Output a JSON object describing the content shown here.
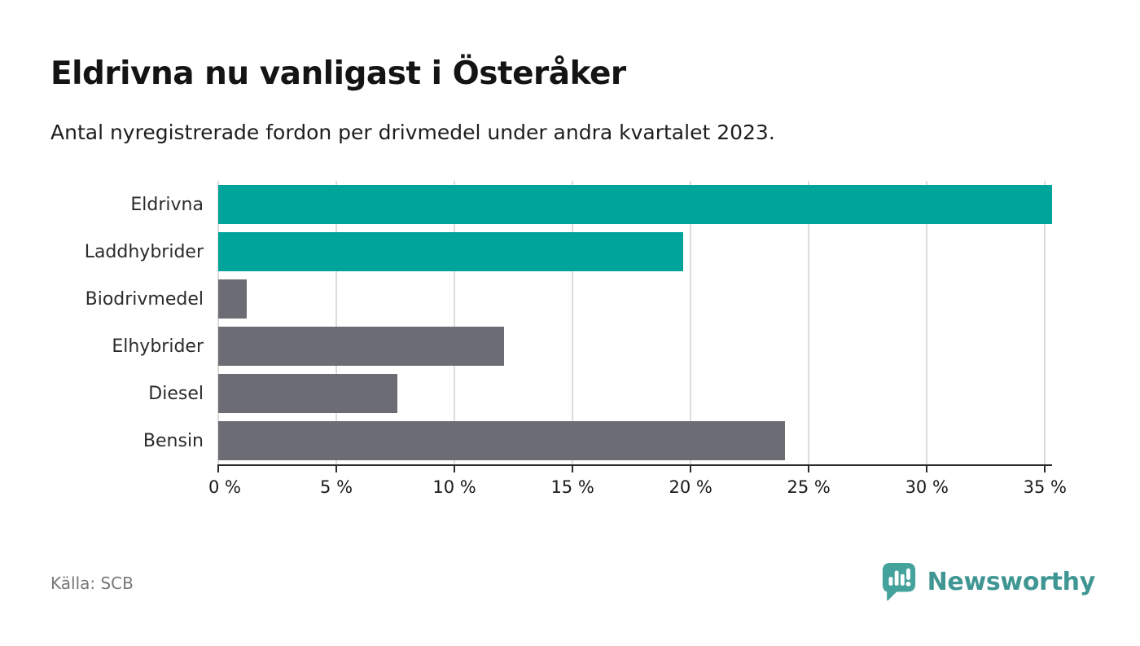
{
  "header": {
    "title": "Eldrivna nu vanligast i Österåker",
    "subtitle": "Antal nyregistrerade fordon per drivmedel under andra kvartalet 2023."
  },
  "footer": {
    "source": "Källa: SCB",
    "brand": "Newsworthy"
  },
  "colors": {
    "accent_teal": "#00a49b",
    "neutral_gray": "#6c6c74",
    "grid": "#dcdcdc",
    "axis": "#2b2b2b",
    "title_text": "#141414",
    "label_text": "#2b2b2b",
    "source_text": "#77777c",
    "brand_text": "#3f9693",
    "brand_icon": "#44a29c"
  },
  "chart_data": {
    "type": "bar",
    "orientation": "horizontal",
    "title": "Eldrivna nu vanligast i Österåker",
    "subtitle": "Antal nyregistrerade fordon per drivmedel under andra kvartalet 2023.",
    "categories": [
      "Eldrivna",
      "Laddhybrider",
      "Biodrivmedel",
      "Elhybrider",
      "Diesel",
      "Bensin"
    ],
    "values": [
      35.3,
      19.7,
      1.2,
      12.1,
      7.6,
      24.0
    ],
    "unit": "%",
    "bar_colors": [
      "#00a49b",
      "#00a49b",
      "#6c6c74",
      "#6c6c74",
      "#6c6c74",
      "#6c6c74"
    ],
    "xlabel": "",
    "ylabel": "",
    "xlim": [
      0,
      35.3
    ],
    "x_ticks": [
      0,
      5,
      10,
      15,
      20,
      25,
      30,
      35
    ],
    "x_tick_labels": [
      "0 %",
      "5 %",
      "10 %",
      "15 %",
      "20 %",
      "25 %",
      "30 %",
      "35 %"
    ],
    "grid": true,
    "legend": false
  }
}
